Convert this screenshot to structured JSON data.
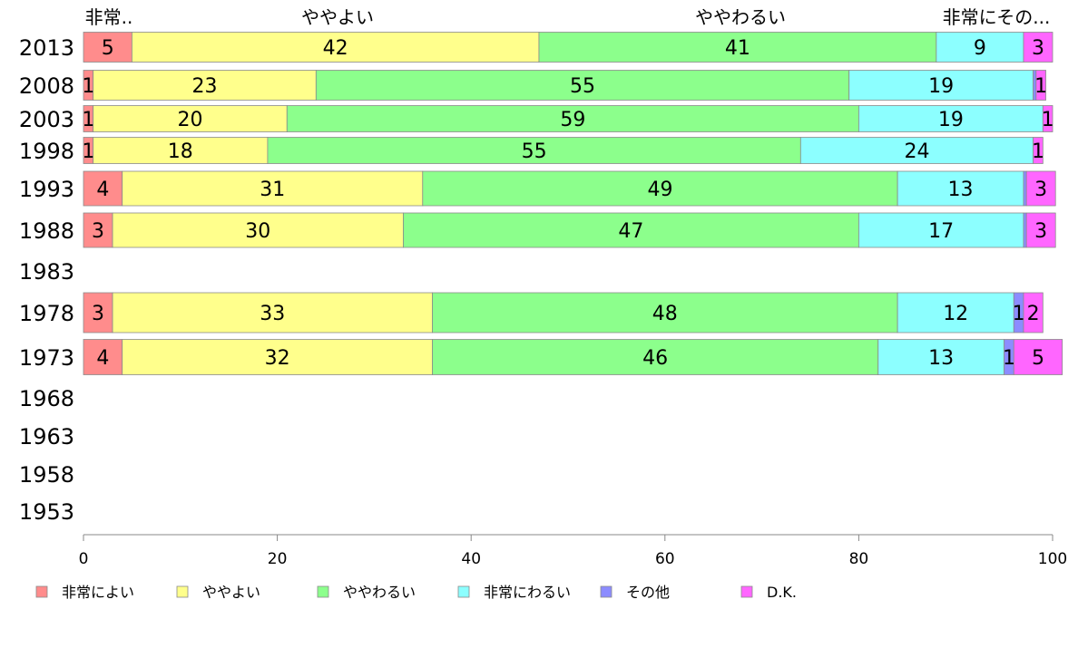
{
  "chart_data": {
    "type": "bar",
    "orientation": "horizontal",
    "stacked": true,
    "title": "",
    "xlabel": "",
    "ylabel": "",
    "xlim": [
      0,
      100
    ],
    "x_ticks": [
      0,
      20,
      40,
      60,
      80,
      100
    ],
    "legend_position": "bottom",
    "top_labels": [
      "非常..",
      "ややよい",
      "ややわるい",
      "非常にその...",
      ""
    ],
    "categories": [
      "2013",
      "2008",
      "2003",
      "1998",
      "1993",
      "1988",
      "1983",
      "1978",
      "1973",
      "1968",
      "1963",
      "1958",
      "1953"
    ],
    "series": [
      {
        "name": "非常によい",
        "color": "#ff8c8c",
        "values": [
          5,
          1,
          1,
          1,
          4,
          3,
          null,
          3,
          4,
          null,
          null,
          null,
          null
        ]
      },
      {
        "name": "ややよい",
        "color": "#ffff8c",
        "values": [
          42,
          23,
          20,
          18,
          31,
          30,
          null,
          33,
          32,
          null,
          null,
          null,
          null
        ]
      },
      {
        "name": "ややわるい",
        "color": "#8cff8c",
        "values": [
          41,
          55,
          59,
          55,
          49,
          47,
          null,
          48,
          46,
          null,
          null,
          null,
          null
        ]
      },
      {
        "name": "非常にわるい",
        "color": "#8cffff",
        "values": [
          9,
          19,
          19,
          24,
          13,
          17,
          null,
          12,
          13,
          null,
          null,
          null,
          null
        ]
      },
      {
        "name": "その他",
        "color": "#8c8cff",
        "values": [
          0,
          0.3,
          0,
          0,
          0.3,
          0.3,
          null,
          1,
          1,
          null,
          null,
          null,
          null
        ]
      },
      {
        "name": "D.K.",
        "color": "#ff66ff",
        "values": [
          3,
          1,
          1,
          1,
          3,
          3,
          null,
          2,
          5,
          null,
          null,
          null,
          null
        ]
      }
    ],
    "segment_labels": [
      [
        "5",
        "42",
        "41",
        "9",
        "",
        "3"
      ],
      [
        "1",
        "23",
        "55",
        "19",
        "",
        "1"
      ],
      [
        "1",
        "20",
        "59",
        "19",
        "",
        "1"
      ],
      [
        "1",
        "18",
        "55",
        "24",
        "",
        "1"
      ],
      [
        "4",
        "31",
        "49",
        "13",
        "",
        "3"
      ],
      [
        "3",
        "30",
        "47",
        "17",
        "",
        "3"
      ],
      [
        "",
        "",
        "",
        "",
        "",
        ""
      ],
      [
        "3",
        "33",
        "48",
        "12",
        "1",
        "2"
      ],
      [
        "4",
        "32",
        "46",
        "13",
        "1",
        "5"
      ],
      [
        "",
        "",
        "",
        "",
        "",
        ""
      ],
      [
        "",
        "",
        "",
        "",
        "",
        ""
      ],
      [
        "",
        "",
        "",
        "",
        "",
        ""
      ],
      [
        "",
        "",
        "",
        "",
        "",
        ""
      ]
    ]
  }
}
